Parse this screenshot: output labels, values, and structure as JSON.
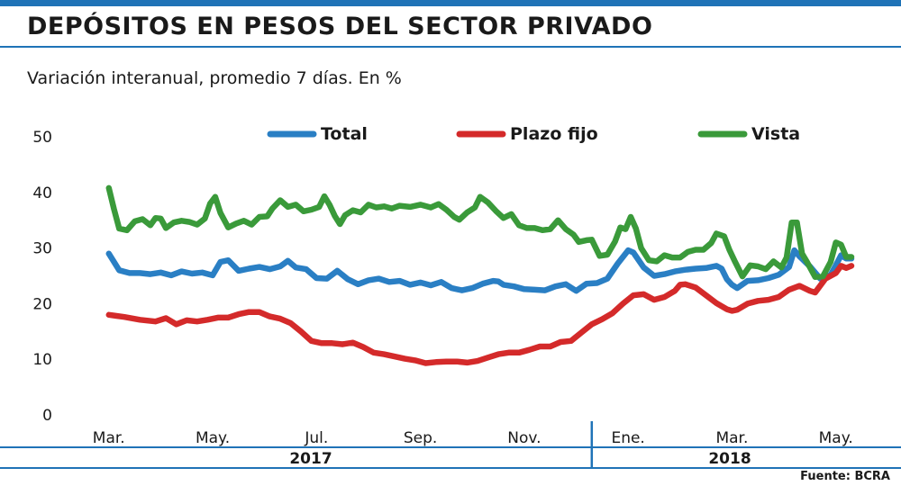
{
  "title": "DEPÓSITOS EN PESOS DEL SECTOR PRIVADO",
  "subtitle": "Variación interanual, promedio 7 días. En %",
  "source": "Fuente: BCRA",
  "colors": {
    "accent": "#1f73b7",
    "total": "#2a7fc4",
    "plazo_fijo": "#d42a2a",
    "vista": "#3a9a3a"
  },
  "chart_data": {
    "type": "line",
    "ylim": [
      0,
      50
    ],
    "yticks": [
      "0",
      "10",
      "20",
      "30",
      "40",
      "50"
    ],
    "xticks": [
      {
        "label": "Mar.",
        "x": 0
      },
      {
        "label": "May.",
        "x": 2
      },
      {
        "label": "Jul.",
        "x": 4
      },
      {
        "label": "Sep.",
        "x": 6
      },
      {
        "label": "Nov.",
        "x": 8
      },
      {
        "label": "Ene.",
        "x": 10
      },
      {
        "label": "Mar.",
        "x": 12
      },
      {
        "label": "May.",
        "x": 14
      }
    ],
    "xlim": [
      -0.1,
      14.3
    ],
    "years": [
      {
        "label": "2017",
        "from": -0.5,
        "to": 9.3
      },
      {
        "label": "2018",
        "from": 9.3,
        "to": 14.6
      }
    ],
    "year_divider_x": 9.3,
    "series": [
      {
        "name": "Total",
        "color": "#2a7fc4",
        "points": [
          [
            0.0,
            29
          ],
          [
            0.2,
            26
          ],
          [
            0.4,
            25.5
          ],
          [
            0.6,
            25.5
          ],
          [
            0.8,
            25.3
          ],
          [
            1.0,
            25.6
          ],
          [
            1.2,
            25.1
          ],
          [
            1.4,
            25.8
          ],
          [
            1.6,
            25.4
          ],
          [
            1.8,
            25.6
          ],
          [
            2.0,
            25.1
          ],
          [
            2.15,
            27.5
          ],
          [
            2.3,
            27.8
          ],
          [
            2.5,
            25.9
          ],
          [
            2.7,
            26.3
          ],
          [
            2.9,
            26.6
          ],
          [
            3.1,
            26.2
          ],
          [
            3.3,
            26.7
          ],
          [
            3.45,
            27.7
          ],
          [
            3.6,
            26.5
          ],
          [
            3.8,
            26.2
          ],
          [
            4.0,
            24.6
          ],
          [
            4.2,
            24.5
          ],
          [
            4.4,
            25.9
          ],
          [
            4.6,
            24.4
          ],
          [
            4.8,
            23.5
          ],
          [
            5.0,
            24.2
          ],
          [
            5.2,
            24.5
          ],
          [
            5.4,
            23.9
          ],
          [
            5.6,
            24.1
          ],
          [
            5.8,
            23.4
          ],
          [
            6.0,
            23.8
          ],
          [
            6.2,
            23.3
          ],
          [
            6.4,
            23.9
          ],
          [
            6.6,
            22.8
          ],
          [
            6.8,
            22.4
          ],
          [
            7.0,
            22.8
          ],
          [
            7.2,
            23.6
          ],
          [
            7.4,
            24.1
          ],
          [
            7.5,
            24
          ],
          [
            7.6,
            23.4
          ],
          [
            7.8,
            23.1
          ],
          [
            8.0,
            22.6
          ],
          [
            8.2,
            22.5
          ],
          [
            8.4,
            22.4
          ],
          [
            8.6,
            23.1
          ],
          [
            8.8,
            23.5
          ],
          [
            9.0,
            22.3
          ],
          [
            9.2,
            23.6
          ],
          [
            9.4,
            23.7
          ],
          [
            9.6,
            24.5
          ],
          [
            9.8,
            27.2
          ],
          [
            10.0,
            29.6
          ],
          [
            10.1,
            29.2
          ],
          [
            10.3,
            26.5
          ],
          [
            10.5,
            25
          ],
          [
            10.7,
            25.3
          ],
          [
            10.9,
            25.8
          ],
          [
            11.1,
            26.1
          ],
          [
            11.3,
            26.3
          ],
          [
            11.5,
            26.4
          ],
          [
            11.7,
            26.8
          ],
          [
            11.8,
            26.3
          ],
          [
            11.9,
            24.4
          ],
          [
            12.0,
            23.4
          ],
          [
            12.1,
            22.8
          ],
          [
            12.3,
            24.1
          ],
          [
            12.5,
            24.2
          ],
          [
            12.7,
            24.6
          ],
          [
            12.9,
            25.2
          ],
          [
            13.1,
            26.6
          ],
          [
            13.2,
            29.6
          ],
          [
            13.3,
            28.5
          ],
          [
            13.5,
            26.7
          ],
          [
            13.7,
            24.5
          ],
          [
            13.9,
            25.2
          ],
          [
            14.0,
            26.9
          ],
          [
            14.1,
            28.7
          ],
          [
            14.2,
            28.1
          ],
          [
            14.3,
            28.1
          ]
        ]
      },
      {
        "name": "Plazo fijo",
        "color": "#d42a2a",
        "points": [
          [
            0.0,
            18
          ],
          [
            0.3,
            17.6
          ],
          [
            0.6,
            17.1
          ],
          [
            0.9,
            16.8
          ],
          [
            1.1,
            17.4
          ],
          [
            1.3,
            16.3
          ],
          [
            1.5,
            17
          ],
          [
            1.7,
            16.8
          ],
          [
            1.9,
            17.1
          ],
          [
            2.1,
            17.5
          ],
          [
            2.3,
            17.5
          ],
          [
            2.5,
            18.1
          ],
          [
            2.7,
            18.5
          ],
          [
            2.9,
            18.5
          ],
          [
            3.1,
            17.7
          ],
          [
            3.3,
            17.3
          ],
          [
            3.5,
            16.5
          ],
          [
            3.7,
            15
          ],
          [
            3.9,
            13.3
          ],
          [
            4.1,
            12.9
          ],
          [
            4.3,
            12.9
          ],
          [
            4.5,
            12.7
          ],
          [
            4.7,
            13
          ],
          [
            4.9,
            12.2
          ],
          [
            5.1,
            11.2
          ],
          [
            5.3,
            10.9
          ],
          [
            5.5,
            10.5
          ],
          [
            5.7,
            10.1
          ],
          [
            5.9,
            9.8
          ],
          [
            6.1,
            9.3
          ],
          [
            6.3,
            9.5
          ],
          [
            6.5,
            9.6
          ],
          [
            6.7,
            9.6
          ],
          [
            6.9,
            9.4
          ],
          [
            7.1,
            9.7
          ],
          [
            7.3,
            10.3
          ],
          [
            7.5,
            10.9
          ],
          [
            7.7,
            11.2
          ],
          [
            7.9,
            11.2
          ],
          [
            8.1,
            11.7
          ],
          [
            8.3,
            12.3
          ],
          [
            8.5,
            12.3
          ],
          [
            8.7,
            13.1
          ],
          [
            8.9,
            13.3
          ],
          [
            9.1,
            14.8
          ],
          [
            9.3,
            16.3
          ],
          [
            9.5,
            17.2
          ],
          [
            9.7,
            18.3
          ],
          [
            9.9,
            20
          ],
          [
            10.1,
            21.5
          ],
          [
            10.3,
            21.7
          ],
          [
            10.5,
            20.7
          ],
          [
            10.7,
            21.2
          ],
          [
            10.9,
            22.3
          ],
          [
            11.0,
            23.4
          ],
          [
            11.1,
            23.5
          ],
          [
            11.3,
            22.9
          ],
          [
            11.5,
            21.5
          ],
          [
            11.7,
            20.1
          ],
          [
            11.9,
            19
          ],
          [
            12.0,
            18.7
          ],
          [
            12.1,
            18.9
          ],
          [
            12.3,
            20
          ],
          [
            12.5,
            20.5
          ],
          [
            12.7,
            20.7
          ],
          [
            12.9,
            21.2
          ],
          [
            13.1,
            22.5
          ],
          [
            13.3,
            23.2
          ],
          [
            13.5,
            22.3
          ],
          [
            13.6,
            22
          ],
          [
            13.8,
            24.5
          ],
          [
            14.0,
            25.5
          ],
          [
            14.1,
            26.8
          ],
          [
            14.2,
            26.4
          ],
          [
            14.3,
            26.8
          ]
        ]
      },
      {
        "name": "Vista",
        "color": "#3a9a3a",
        "points": [
          [
            0.0,
            40.8
          ],
          [
            0.1,
            37
          ],
          [
            0.2,
            33.5
          ],
          [
            0.35,
            33.2
          ],
          [
            0.5,
            34.8
          ],
          [
            0.65,
            35.2
          ],
          [
            0.8,
            34.1
          ],
          [
            0.9,
            35.4
          ],
          [
            1.0,
            35.3
          ],
          [
            1.1,
            33.6
          ],
          [
            1.25,
            34.6
          ],
          [
            1.4,
            34.9
          ],
          [
            1.55,
            34.7
          ],
          [
            1.7,
            34.2
          ],
          [
            1.85,
            35.3
          ],
          [
            1.95,
            38
          ],
          [
            2.05,
            39.2
          ],
          [
            2.15,
            36.3
          ],
          [
            2.3,
            33.7
          ],
          [
            2.45,
            34.4
          ],
          [
            2.6,
            34.9
          ],
          [
            2.75,
            34.2
          ],
          [
            2.9,
            35.6
          ],
          [
            3.05,
            35.7
          ],
          [
            3.15,
            37.1
          ],
          [
            3.3,
            38.6
          ],
          [
            3.45,
            37.4
          ],
          [
            3.6,
            37.8
          ],
          [
            3.75,
            36.6
          ],
          [
            3.9,
            36.9
          ],
          [
            4.05,
            37.4
          ],
          [
            4.15,
            39.3
          ],
          [
            4.25,
            37.8
          ],
          [
            4.35,
            35.8
          ],
          [
            4.45,
            34.3
          ],
          [
            4.55,
            35.9
          ],
          [
            4.7,
            36.8
          ],
          [
            4.85,
            36.4
          ],
          [
            5.0,
            37.8
          ],
          [
            5.15,
            37.3
          ],
          [
            5.3,
            37.5
          ],
          [
            5.45,
            37.1
          ],
          [
            5.6,
            37.6
          ],
          [
            5.8,
            37.4
          ],
          [
            6.0,
            37.8
          ],
          [
            6.2,
            37.3
          ],
          [
            6.35,
            37.9
          ],
          [
            6.5,
            36.9
          ],
          [
            6.65,
            35.6
          ],
          [
            6.75,
            35.1
          ],
          [
            6.9,
            36.4
          ],
          [
            7.05,
            37.3
          ],
          [
            7.15,
            39.2
          ],
          [
            7.3,
            38.2
          ],
          [
            7.45,
            36.7
          ],
          [
            7.6,
            35.4
          ],
          [
            7.75,
            36.1
          ],
          [
            7.9,
            34.1
          ],
          [
            8.05,
            33.6
          ],
          [
            8.2,
            33.6
          ],
          [
            8.35,
            33.2
          ],
          [
            8.5,
            33.4
          ],
          [
            8.65,
            35
          ],
          [
            8.8,
            33.4
          ],
          [
            8.95,
            32.4
          ],
          [
            9.05,
            31.1
          ],
          [
            9.2,
            31.4
          ],
          [
            9.3,
            31.5
          ],
          [
            9.45,
            28.6
          ],
          [
            9.6,
            28.8
          ],
          [
            9.75,
            31.2
          ],
          [
            9.85,
            33.7
          ],
          [
            9.95,
            33.4
          ],
          [
            10.05,
            35.6
          ],
          [
            10.15,
            33.5
          ],
          [
            10.25,
            30
          ],
          [
            10.4,
            27.8
          ],
          [
            10.55,
            27.6
          ],
          [
            10.7,
            28.7
          ],
          [
            10.85,
            28.3
          ],
          [
            11.0,
            28.3
          ],
          [
            11.15,
            29.3
          ],
          [
            11.3,
            29.7
          ],
          [
            11.45,
            29.7
          ],
          [
            11.6,
            30.9
          ],
          [
            11.7,
            32.6
          ],
          [
            11.85,
            32.1
          ],
          [
            11.95,
            29.7
          ],
          [
            12.05,
            27.7
          ],
          [
            12.2,
            24.9
          ],
          [
            12.35,
            26.9
          ],
          [
            12.5,
            26.7
          ],
          [
            12.65,
            26.2
          ],
          [
            12.8,
            27.6
          ],
          [
            12.95,
            26.5
          ],
          [
            13.05,
            28.3
          ],
          [
            13.15,
            34.6
          ],
          [
            13.25,
            34.6
          ],
          [
            13.35,
            29
          ],
          [
            13.45,
            27.4
          ],
          [
            13.6,
            24.8
          ],
          [
            13.75,
            24.9
          ],
          [
            13.9,
            27.5
          ],
          [
            14.0,
            31
          ],
          [
            14.1,
            30.6
          ],
          [
            14.2,
            28.4
          ],
          [
            14.3,
            28.4
          ]
        ]
      }
    ]
  }
}
